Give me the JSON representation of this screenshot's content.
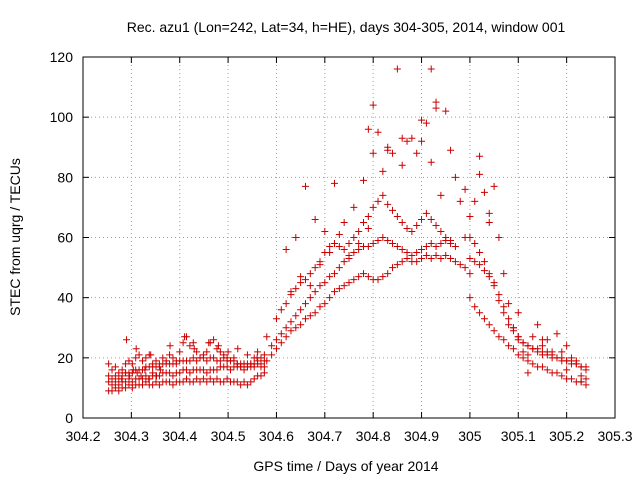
{
  "chart_data": {
    "type": "scatter",
    "title": "Rec. azu1 (Lon=242, Lat=34, h=HE), days 304-305, 2014, window 001",
    "xlabel": "GPS time / Days of year 2014",
    "ylabel": "STEC from uqrg / TECUs",
    "xlim": [
      304.2,
      305.3
    ],
    "ylim": [
      0,
      120
    ],
    "xticks": [
      "304.2",
      "304.3",
      "304.4",
      "304.5",
      "304.6",
      "304.7",
      "304.8",
      "304.9",
      "305",
      "305.1",
      "305.2",
      "305.3"
    ],
    "yticks": [
      "0",
      "20",
      "40",
      "60",
      "80",
      "100",
      "120"
    ],
    "grid": true,
    "marker": "plus",
    "color": "#cc0000",
    "series": [
      {
        "x": [
          304.253,
          304.26,
          304.267,
          304.274,
          304.281,
          304.288,
          304.295,
          304.302,
          304.309,
          304.316,
          304.323,
          304.33,
          304.337,
          304.344,
          304.351,
          304.358,
          304.365,
          304.372,
          304.379,
          304.386,
          304.393,
          304.4,
          304.407,
          304.414,
          304.421,
          304.428,
          304.435,
          304.442,
          304.449,
          304.456,
          304.463,
          304.47,
          304.477,
          304.484,
          304.491,
          304.498,
          304.505,
          304.512,
          304.519,
          304.526,
          304.533,
          304.54,
          304.547,
          304.554,
          304.561,
          304.568,
          304.575
        ],
        "y": [
          9,
          9,
          10,
          9,
          10,
          10,
          11,
          10,
          11,
          11,
          11,
          12,
          11,
          11,
          12,
          11,
          12,
          12,
          12,
          11,
          12,
          12,
          12,
          13,
          12,
          12,
          13,
          12,
          13,
          12,
          13,
          12,
          13,
          12,
          12,
          13,
          12,
          12,
          12,
          11,
          12,
          11,
          12,
          13,
          14,
          14,
          15
        ]
      },
      {
        "x": [
          304.253,
          304.26,
          304.267,
          304.274,
          304.281,
          304.288,
          304.295,
          304.302,
          304.309,
          304.316,
          304.323,
          304.33,
          304.337,
          304.344,
          304.351,
          304.358,
          304.365,
          304.372,
          304.379,
          304.386,
          304.393,
          304.4,
          304.407,
          304.414,
          304.421,
          304.428,
          304.435,
          304.442,
          304.449,
          304.456,
          304.463,
          304.47,
          304.477,
          304.484,
          304.491,
          304.498,
          304.505,
          304.512,
          304.519,
          304.526,
          304.533,
          304.54,
          304.547,
          304.554,
          304.561,
          304.568,
          304.575
        ],
        "y": [
          12,
          11,
          12,
          11,
          12,
          12,
          13,
          12,
          13,
          13,
          13,
          14,
          13,
          14,
          14,
          14,
          15,
          15,
          15,
          14,
          15,
          15,
          16,
          16,
          15,
          16,
          16,
          16,
          16,
          15,
          16,
          16,
          16,
          17,
          17,
          17,
          16,
          17,
          17,
          17,
          18,
          17,
          18,
          18,
          19,
          18,
          19
        ]
      },
      {
        "x": [
          304.253,
          304.26,
          304.267,
          304.274,
          304.281,
          304.288,
          304.295,
          304.302,
          304.309,
          304.316,
          304.323,
          304.33,
          304.337,
          304.344,
          304.351,
          304.358,
          304.365,
          304.372,
          304.379,
          304.386,
          304.393,
          304.4,
          304.407,
          304.414,
          304.421,
          304.428,
          304.435,
          304.442,
          304.449,
          304.456,
          304.463,
          304.47,
          304.477,
          304.484,
          304.491,
          304.498,
          304.505,
          304.512,
          304.519,
          304.526,
          304.533,
          304.54,
          304.547,
          304.554,
          304.561,
          304.568,
          304.575
        ],
        "y": [
          14,
          13,
          14,
          13,
          14,
          15,
          15,
          15,
          16,
          16,
          16,
          17,
          17,
          17,
          17,
          17,
          18,
          18,
          18,
          18,
          18,
          19,
          19,
          19,
          19,
          20,
          19,
          20,
          20,
          19,
          20,
          20,
          19,
          19,
          20,
          19,
          19,
          19,
          18,
          18,
          18,
          18,
          17,
          17,
          18,
          17,
          17
        ]
      },
      {
        "x": [
          304.253,
          304.26,
          304.267,
          304.274,
          304.281,
          304.288,
          304.295,
          304.302,
          304.309,
          304.316,
          304.323,
          304.33,
          304.337,
          304.344,
          304.351,
          304.358,
          304.365,
          304.372,
          304.379,
          304.386,
          304.393,
          304.4,
          304.407,
          304.414,
          304.421,
          304.428,
          304.435,
          304.442,
          304.449,
          304.456,
          304.463,
          304.47,
          304.477,
          304.484,
          304.491,
          304.498,
          304.505,
          304.512,
          304.519,
          304.526,
          304.533,
          304.54,
          304.547,
          304.554,
          304.561,
          304.568,
          304.575
        ],
        "y": [
          18,
          16,
          17,
          15,
          16,
          18,
          19,
          18,
          20,
          21,
          19,
          20,
          21,
          18,
          19,
          18,
          20,
          19,
          21,
          20,
          19,
          22,
          25,
          27,
          24,
          25,
          22,
          20,
          21,
          22,
          25,
          26,
          23,
          22,
          21,
          20,
          19,
          20,
          18,
          17,
          16,
          17,
          18,
          20,
          22,
          20,
          21
        ]
      },
      {
        "x": [
          304.28,
          304.288,
          304.296,
          304.304,
          304.312,
          304.32,
          304.328,
          304.336,
          304.344,
          304.352,
          304.36
        ],
        "y": [
          13,
          15,
          14,
          16,
          15,
          14,
          16,
          13,
          15,
          14,
          16
        ]
      },
      {
        "x": [
          304.29,
          304.31,
          304.34,
          304.38,
          304.41,
          304.43,
          304.46,
          304.48,
          304.5,
          304.52,
          304.54,
          304.56,
          304.58
        ],
        "y": [
          26,
          23,
          21,
          24,
          27,
          23,
          25,
          24,
          22,
          23,
          21,
          20,
          27
        ]
      },
      {
        "x": [
          304.58,
          304.59,
          304.6,
          304.61,
          304.62,
          304.63,
          304.64,
          304.65,
          304.66,
          304.67,
          304.68,
          304.69,
          304.7,
          304.71,
          304.72,
          304.73,
          304.74,
          304.75,
          304.76,
          304.77,
          304.78,
          304.79,
          304.8,
          304.81,
          304.82,
          304.83,
          304.84,
          304.85,
          304.86,
          304.87,
          304.88,
          304.89,
          304.9,
          304.91,
          304.92,
          304.93,
          304.94,
          304.95,
          304.96,
          304.97,
          304.98,
          304.99,
          305.0
        ],
        "y": [
          19,
          21,
          23,
          25,
          27,
          29,
          30,
          31,
          33,
          34,
          35,
          37,
          38,
          40,
          42,
          43,
          44,
          45,
          46,
          47,
          48,
          47,
          46,
          46,
          47,
          48,
          50,
          51,
          52,
          53,
          52,
          52,
          53,
          54,
          53,
          54,
          53,
          54,
          53,
          52,
          51,
          50,
          48
        ]
      },
      {
        "x": [
          304.59,
          304.6,
          304.61,
          304.62,
          304.63,
          304.64,
          304.65,
          304.66,
          304.67,
          304.68,
          304.69,
          304.7,
          304.71,
          304.72,
          304.73,
          304.74,
          304.75,
          304.76,
          304.77,
          304.78,
          304.79,
          304.8,
          304.81,
          304.82,
          304.83,
          304.84,
          304.85,
          304.86,
          304.87,
          304.88,
          304.89,
          304.9,
          304.91,
          304.92,
          304.93,
          304.94,
          304.95,
          304.96,
          304.97
        ],
        "y": [
          24,
          26,
          28,
          30,
          32,
          34,
          36,
          38,
          40,
          42,
          44,
          45,
          47,
          48,
          50,
          52,
          53,
          55,
          56,
          57,
          57,
          58,
          59,
          60,
          59,
          58,
          57,
          56,
          55,
          54,
          55,
          56,
          57,
          58,
          57,
          58,
          59,
          58,
          57
        ]
      },
      {
        "x": [
          304.6,
          304.61,
          304.62,
          304.63,
          304.64,
          304.65,
          304.66,
          304.67,
          304.68,
          304.69,
          304.7,
          304.71,
          304.72,
          304.73,
          304.74,
          304.75,
          304.76,
          304.77,
          304.78,
          304.79,
          304.8,
          304.81,
          304.82,
          304.83,
          304.84,
          304.85,
          304.86,
          304.87,
          304.88,
          304.89,
          304.9,
          304.91,
          304.92,
          304.93,
          304.94,
          304.95,
          304.96
        ],
        "y": [
          33,
          36,
          38,
          41,
          43,
          45,
          46,
          48,
          50,
          52,
          55,
          57,
          58,
          57,
          56,
          58,
          60,
          62,
          65,
          67,
          70,
          72,
          74,
          71,
          69,
          67,
          65,
          63,
          62,
          64,
          66,
          68,
          66,
          64,
          62,
          60,
          59
        ]
      },
      {
        "x": [
          304.62,
          304.64,
          304.66,
          304.68,
          304.7,
          304.72,
          304.74,
          304.76,
          304.78,
          304.8,
          304.82,
          304.84,
          304.86,
          304.88,
          304.9,
          304.92,
          304.94,
          304.96,
          304.98
        ],
        "y": [
          56,
          60,
          77,
          66,
          62,
          78,
          65,
          70,
          79,
          88,
          82,
          88,
          84,
          93,
          92,
          85,
          74,
          89,
          72
        ]
      },
      {
        "x": [
          304.63,
          304.65,
          304.67,
          304.69,
          304.71,
          304.73,
          304.75,
          304.77,
          304.79,
          304.81,
          304.83,
          304.85,
          304.87,
          304.89,
          304.91,
          304.93,
          304.95,
          304.97,
          304.99
        ],
        "y": [
          42,
          47,
          44,
          51,
          55,
          61,
          54,
          58,
          63,
          95,
          90,
          116,
          92,
          88,
          98,
          105,
          102,
          80,
          76
        ]
      },
      {
        "x": [
          304.79,
          304.8,
          304.83,
          304.86,
          304.9,
          304.92,
          304.93
        ],
        "y": [
          96,
          104,
          89,
          93,
          99,
          116,
          103
        ]
      },
      {
        "x": [
          305.0,
          305.01,
          305.02,
          305.03,
          305.04,
          305.05,
          305.06,
          305.07,
          305.08,
          305.09,
          305.1,
          305.11,
          305.12,
          305.13,
          305.14,
          305.15,
          305.16,
          305.17,
          305.18,
          305.19,
          305.2,
          305.21,
          305.22,
          305.23,
          305.24
        ],
        "y": [
          40,
          37,
          35,
          33,
          31,
          29,
          27,
          26,
          24,
          23,
          21,
          20,
          19,
          18,
          17,
          17,
          16,
          15,
          15,
          14,
          13,
          13,
          12,
          12,
          11
        ]
      },
      {
        "x": [
          305.0,
          305.01,
          305.02,
          305.03,
          305.04,
          305.05,
          305.06,
          305.07,
          305.08,
          305.09,
          305.1,
          305.11,
          305.12,
          305.13,
          305.14,
          305.15,
          305.16,
          305.17,
          305.18,
          305.19,
          305.2,
          305.21,
          305.22,
          305.23,
          305.24
        ],
        "y": [
          53,
          52,
          51,
          49,
          47,
          45,
          41,
          37,
          33,
          30,
          27,
          25,
          24,
          23,
          22,
          21,
          21,
          20,
          20,
          19,
          19,
          18,
          18,
          17,
          17
        ]
      },
      {
        "x": [
          305.0,
          305.01,
          305.02,
          305.03,
          305.04,
          305.05,
          305.06,
          305.07,
          305.08,
          305.09,
          305.1,
          305.11,
          305.12,
          305.13,
          305.14,
          305.15,
          305.16,
          305.17,
          305.18,
          305.19,
          305.2,
          305.21,
          305.22,
          305.23,
          305.24
        ],
        "y": [
          60,
          58,
          55,
          52,
          48,
          44,
          39,
          35,
          31,
          29,
          27,
          25,
          24,
          23,
          23,
          22,
          22,
          21,
          20,
          20,
          19,
          19,
          18,
          17,
          16
        ]
      },
      {
        "x": [
          305.0,
          305.01,
          305.02,
          305.03,
          305.04,
          305.05,
          305.06,
          305.07,
          305.08,
          305.09,
          305.1,
          305.11,
          305.12,
          305.13,
          305.14,
          305.15,
          305.16,
          305.17,
          305.18,
          305.19,
          305.2,
          305.21,
          305.22,
          305.23,
          305.24
        ],
        "y": [
          67,
          72,
          87,
          75,
          68,
          77,
          60,
          48,
          38,
          30,
          26,
          22,
          21,
          27,
          31,
          24,
          26,
          22,
          28,
          22,
          24,
          20,
          19,
          14,
          13
        ]
      },
      {
        "x": [
          304.99,
          305.02,
          305.04,
          305.1,
          305.12,
          305.15,
          305.2,
          305.23
        ],
        "y": [
          60,
          81,
          65,
          35,
          15,
          26,
          16,
          12
        ]
      }
    ]
  }
}
